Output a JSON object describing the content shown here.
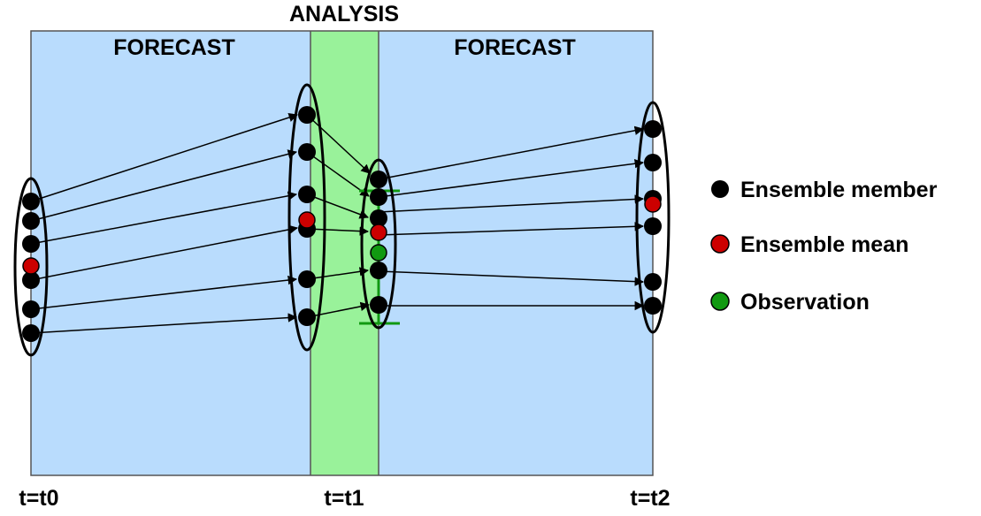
{
  "labels": {
    "analysis": "ANALYSIS",
    "forecast_left": "FORECAST",
    "forecast_right": "FORECAST",
    "time_t0": "t=t0",
    "time_t1": "t=t1",
    "time_t2": "t=t2"
  },
  "legend": {
    "member": "Ensemble member",
    "mean": "Ensemble mean",
    "observation": "Observation"
  },
  "colors": {
    "forecast_bg": "#b9dcfd",
    "analysis_bg": "#99f29a",
    "member": "#000000",
    "mean": "#cc0000",
    "observation": "#119911",
    "error_bar": "#119911",
    "border": "#555555"
  }
}
